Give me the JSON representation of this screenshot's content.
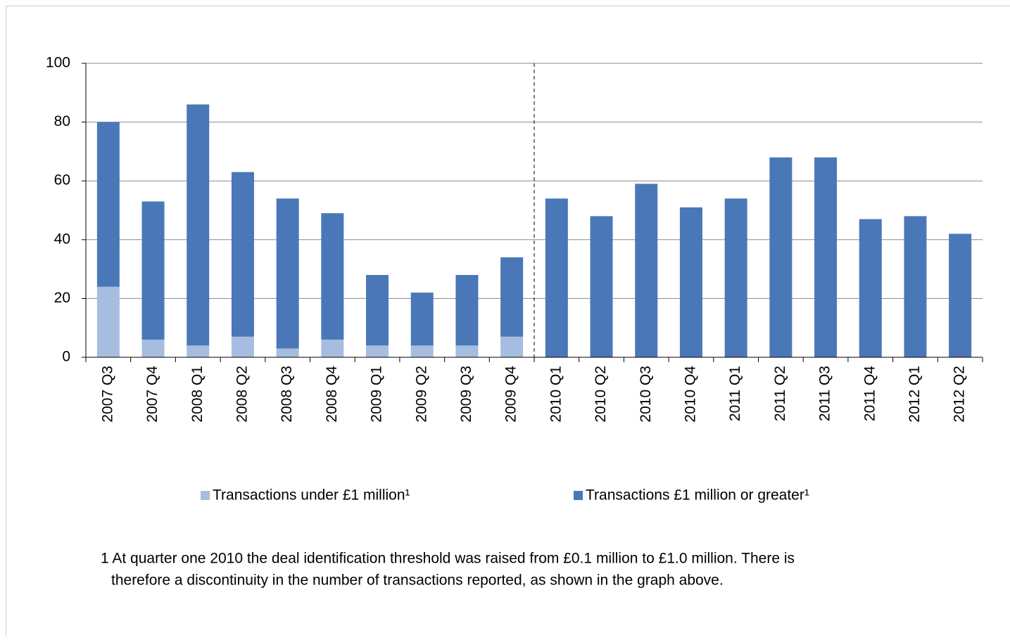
{
  "chart_data": {
    "type": "bar",
    "stacked": true,
    "categories": [
      "2007 Q3",
      "2007 Q4",
      "2008 Q1",
      "2008 Q2",
      "2008 Q3",
      "2008 Q4",
      "2009 Q1",
      "2009 Q2",
      "2009 Q3",
      "2009 Q4",
      "2010 Q1",
      "2010 Q2",
      "2010 Q3",
      "2010 Q4",
      "2011 Q1",
      "2011 Q2",
      "2011 Q3",
      "2011 Q4",
      "2012 Q1",
      "2012 Q2"
    ],
    "series": [
      {
        "name": "Transactions under £1 million¹",
        "color": "#a6bddf",
        "values": [
          24,
          6,
          4,
          7,
          3,
          6,
          4,
          4,
          4,
          7,
          0,
          0,
          0,
          0,
          0,
          0,
          0,
          0,
          0,
          0
        ]
      },
      {
        "name": "Transactions £1 million or greater¹",
        "color": "#4a77b8",
        "values": [
          56,
          47,
          82,
          56,
          51,
          43,
          24,
          18,
          24,
          27,
          54,
          48,
          59,
          51,
          54,
          68,
          68,
          47,
          48,
          42
        ]
      }
    ],
    "ylim": [
      0,
      100
    ],
    "yticks": [
      0,
      20,
      40,
      60,
      80,
      100
    ],
    "grid": true,
    "discontinuity_at": "2010 Q1",
    "footnote": [
      "1 At quarter one 2010 the deal identification threshold was raised from £0.1 million to £1.0 million. There is",
      "therefore a discontinuity in the number of transactions reported, as shown in the graph above."
    ]
  }
}
